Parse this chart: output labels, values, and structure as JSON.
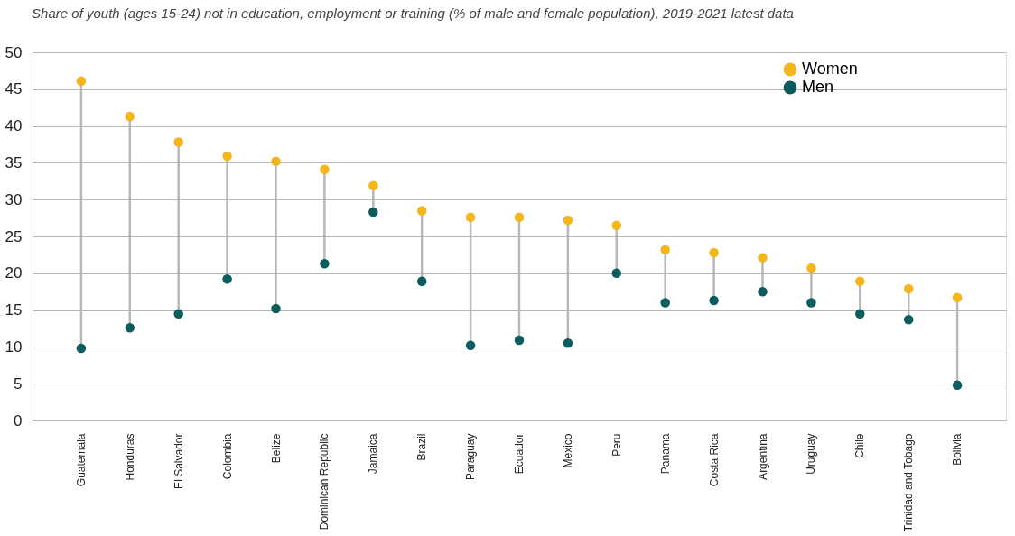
{
  "chart_data": {
    "type": "scatter",
    "title": "Share of youth (ages 15-24) not in education, employment or training (% of male and female population), 2019-2021 latest data",
    "categories": [
      "Guatemala",
      "Honduras",
      "El Salvador",
      "Colombia",
      "Belize",
      "Dominican Republic",
      "Jamaica",
      "Brazil",
      "Paraguay",
      "Ecuador",
      "Mexico",
      "Peru",
      "Panama",
      "Costa Rica",
      "Argentina",
      "Uruguay",
      "Chile",
      "Trinidad and Tobago",
      "Bolivia"
    ],
    "series": [
      {
        "name": "Women",
        "color": "#f5b51c",
        "values": [
          46.1,
          41.3,
          37.8,
          35.9,
          35.2,
          34.1,
          31.9,
          28.5,
          27.6,
          27.6,
          27.2,
          26.5,
          23.2,
          22.8,
          22.1,
          20.7,
          18.9,
          17.9,
          16.7
        ]
      },
      {
        "name": "Men",
        "color": "#0b5c5e",
        "values": [
          9.8,
          12.6,
          14.5,
          19.2,
          15.2,
          21.3,
          28.3,
          18.9,
          10.2,
          10.9,
          10.5,
          20.0,
          16.0,
          16.3,
          17.5,
          16.0,
          14.5,
          13.7,
          4.8
        ]
      }
    ],
    "ylim": [
      0,
      50
    ],
    "yticks": [
      0,
      5,
      10,
      15,
      20,
      25,
      30,
      35,
      40,
      45,
      50
    ],
    "grid": "y",
    "legend": "top right",
    "marker": "circle"
  }
}
